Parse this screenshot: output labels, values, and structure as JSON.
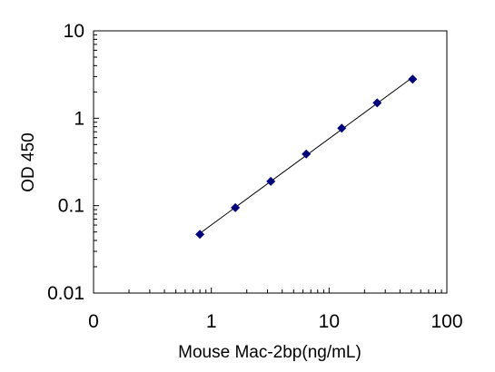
{
  "chart_data": {
    "type": "scatter",
    "title": "",
    "xlabel": "Mouse Mac-2bp(ng/mL)",
    "ylabel": "OD 450",
    "x_scale": "log",
    "y_scale": "log",
    "xlim": [
      0.1,
      100
    ],
    "ylim": [
      0.01,
      10
    ],
    "x_tick_labels": [
      "0",
      "1",
      "10",
      "100"
    ],
    "y_tick_labels": [
      "10",
      "1",
      "0.1",
      "0.01"
    ],
    "x_tick_values": [
      0.1,
      1,
      10,
      100
    ],
    "y_tick_values": [
      10,
      1,
      0.1,
      0.01
    ],
    "grid": false,
    "legend": "none",
    "series": [
      {
        "x": [
          0.8,
          1.6,
          3.2,
          6.4,
          12.8,
          25.6,
          51.2
        ],
        "y": [
          0.047,
          0.095,
          0.19,
          0.39,
          0.77,
          1.5,
          2.8
        ],
        "marker": "diamond",
        "color": "#000080",
        "trendline": true,
        "line_color": "#000000"
      }
    ]
  }
}
